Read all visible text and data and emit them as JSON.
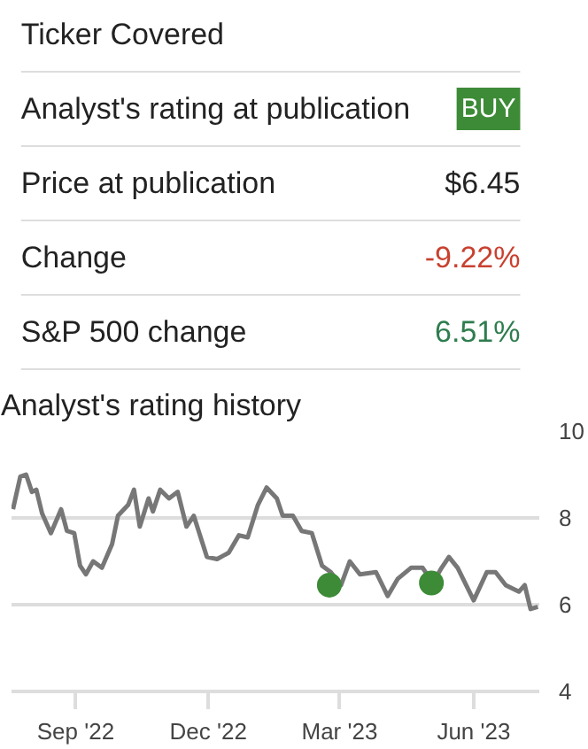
{
  "chart_data": [
    {
      "type": "other",
      "categories": [
        "Ticker Covered",
        "Analyst's rating at publication",
        "Price at publication",
        "Change",
        "S&P 500 change"
      ],
      "value_labels": [
        null,
        "BUY",
        "$6.45",
        "-9.22%",
        "6.51%"
      ],
      "colors": [
        "#4a6fd8",
        "#3d8b37",
        "#222222",
        "#c9402f",
        "#2e7d4f"
      ]
    },
    {
      "type": "line",
      "title": "Analyst's rating history",
      "xlim": [
        "2022-07-19",
        "2023-07-16"
      ],
      "xticks": [
        {
          "value": "2022-09-01",
          "label": "Sep '22"
        },
        {
          "value": "2022-12-01",
          "label": "Dec '22"
        },
        {
          "value": "2023-03-01",
          "label": "Mar '23"
        },
        {
          "value": "2023-06-01",
          "label": "Jun '23"
        }
      ],
      "ylim": [
        4,
        10
      ],
      "yticks": [
        4,
        6,
        8,
        10
      ],
      "grid": "y",
      "series": [
        {
          "type": "line",
          "color": "#777777",
          "marker": "none",
          "x": [
            "2022-07-20",
            "2022-07-25",
            "2022-07-29",
            "2022-08-02",
            "2022-08-05",
            "2022-08-09",
            "2022-08-15",
            "2022-08-22",
            "2022-08-26",
            "2022-08-31",
            "2022-09-04",
            "2022-09-08",
            "2022-09-13",
            "2022-09-19",
            "2022-09-26",
            "2022-09-30",
            "2022-10-07",
            "2022-10-11",
            "2022-10-15",
            "2022-10-21",
            "2022-10-24",
            "2022-10-29",
            "2022-11-04",
            "2022-11-10",
            "2022-11-16",
            "2022-11-21",
            "2022-11-30",
            "2022-12-07",
            "2022-12-15",
            "2022-12-22",
            "2022-12-28",
            "2023-01-04",
            "2023-01-10",
            "2023-01-17",
            "2023-01-21",
            "2023-01-28",
            "2023-02-03",
            "2023-02-10",
            "2023-02-17",
            "2023-02-23",
            "2023-03-02",
            "2023-03-08",
            "2023-03-15",
            "2023-03-26",
            "2023-04-03",
            "2023-04-10",
            "2023-04-19",
            "2023-04-27",
            "2023-05-04",
            "2023-05-10",
            "2023-05-15",
            "2023-05-21",
            "2023-06-01",
            "2023-06-10",
            "2023-06-16",
            "2023-06-23",
            "2023-07-02",
            "2023-07-06",
            "2023-07-10",
            "2023-07-15"
          ],
          "values": [
            8.2,
            8.95,
            9.0,
            8.6,
            8.65,
            8.1,
            7.65,
            8.2,
            7.7,
            7.65,
            6.9,
            6.7,
            7.0,
            6.85,
            7.4,
            8.05,
            8.3,
            8.65,
            7.8,
            8.45,
            8.15,
            8.65,
            8.45,
            8.6,
            7.8,
            8.05,
            7.1,
            7.05,
            7.2,
            7.6,
            7.55,
            8.3,
            8.7,
            8.45,
            8.05,
            8.05,
            7.7,
            7.65,
            6.9,
            6.75,
            6.45,
            7.0,
            6.7,
            6.75,
            6.2,
            6.6,
            6.85,
            6.85,
            6.5,
            6.85,
            7.1,
            6.85,
            6.1,
            6.75,
            6.75,
            6.45,
            6.3,
            6.45,
            5.9,
            5.95
          ]
        },
        {
          "type": "scatter",
          "color": "#3d8b37",
          "marker": "circle",
          "x": [
            "2023-02-22",
            "2023-05-03"
          ],
          "values": [
            6.45,
            6.5
          ]
        }
      ]
    }
  ]
}
